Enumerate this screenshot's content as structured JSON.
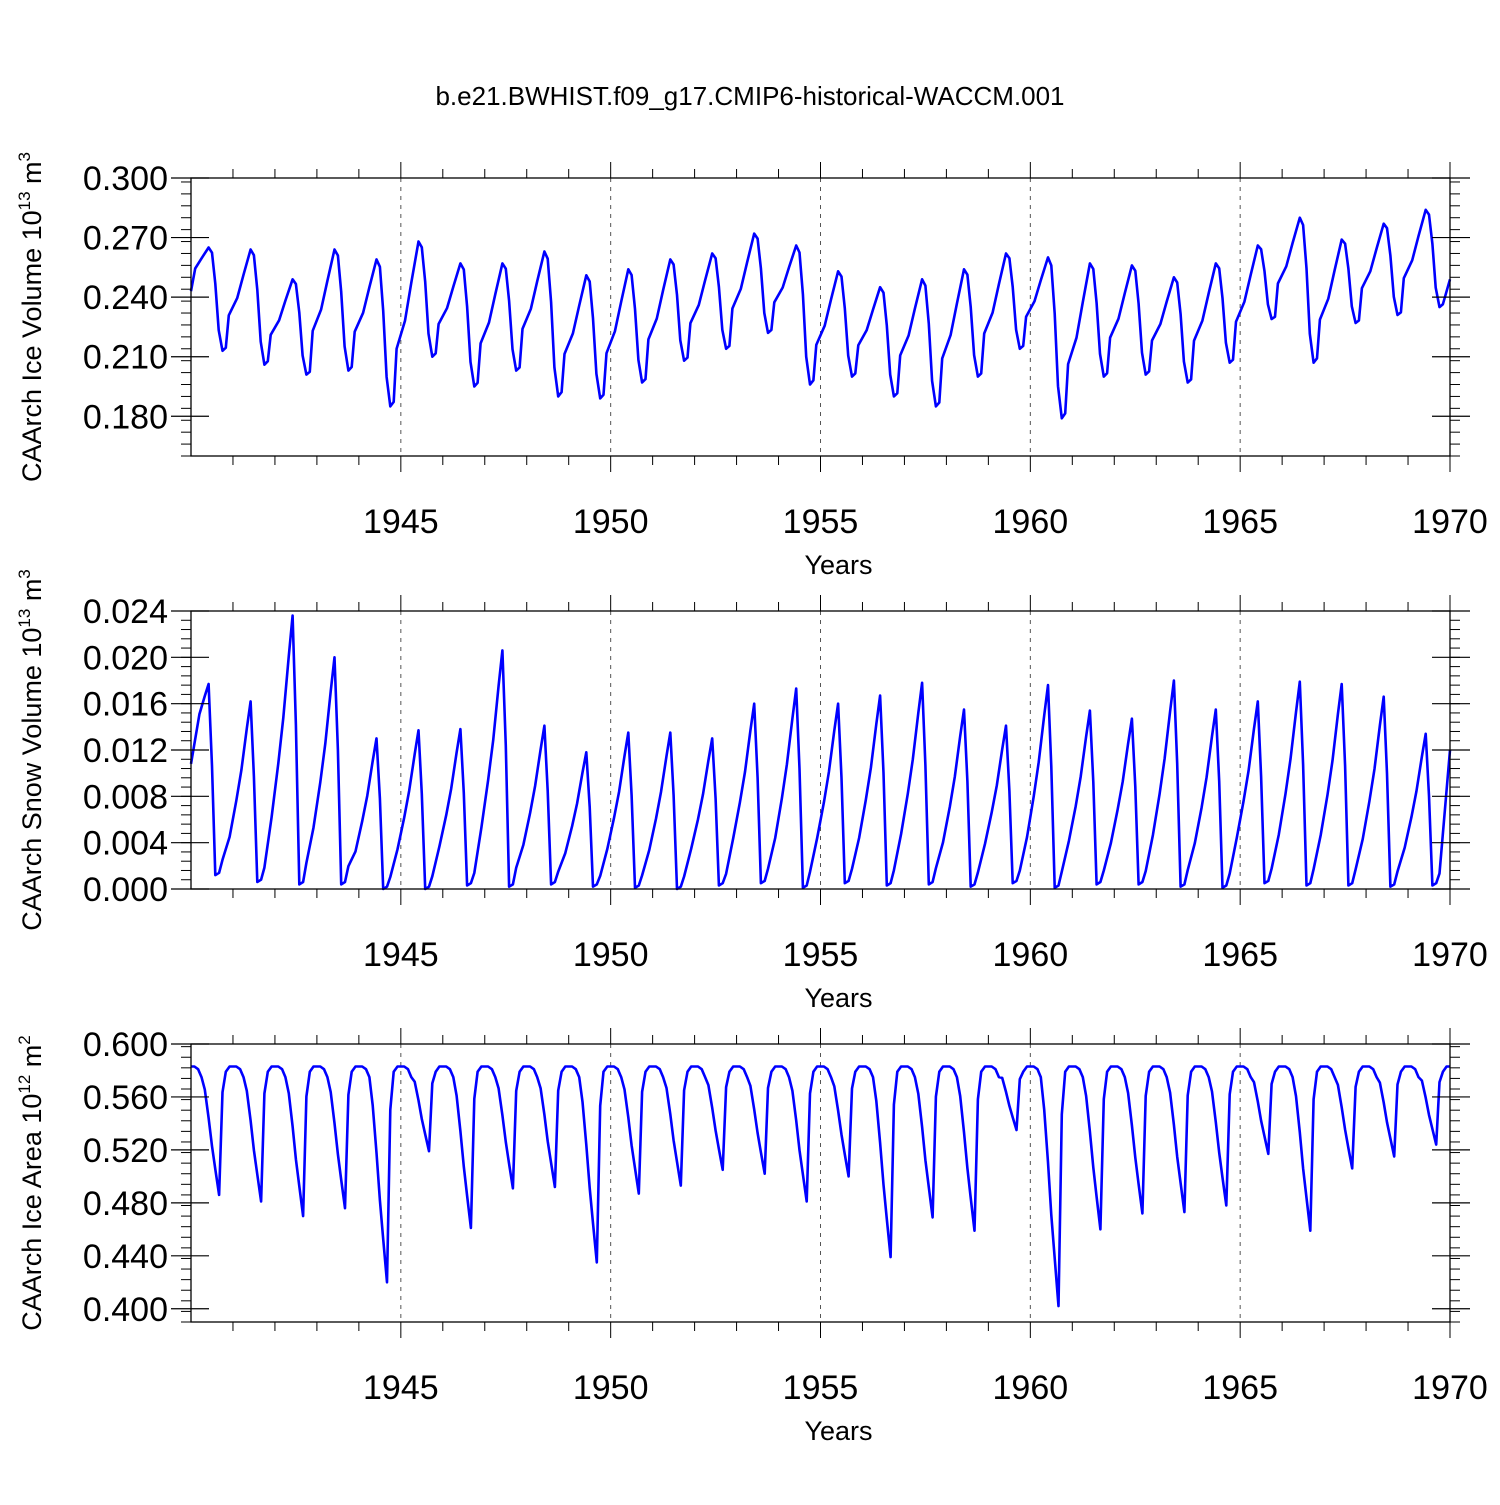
{
  "figure": {
    "title": "b.e21.BWHIST.f09_g17.CMIP6-historical-WACCM.001",
    "line_color": "#0000ff",
    "frame_color": "#000000",
    "grid_color": "#555555"
  },
  "chart_data": [
    {
      "type": "line",
      "id": "ice-volume",
      "ylabel_main": "CAArch Ice Volume 10",
      "ylabel_exp": "13",
      "ylabel_unit": " m",
      "ylabel_unit_exp": "3",
      "xlabel": "Years",
      "xlim": [
        1940.0,
        1970.0
      ],
      "ylim": [
        0.16,
        0.3
      ],
      "xticks": [
        1945,
        1950,
        1955,
        1960,
        1965,
        1970
      ],
      "xtick_labels": [
        "1945",
        "1950",
        "1955",
        "1960",
        "1965",
        "1970"
      ],
      "yticks": [
        0.18,
        0.21,
        0.24,
        0.27,
        0.3
      ],
      "ytick_labels": [
        "0.180",
        "0.210",
        "0.240",
        "0.270",
        "0.300"
      ],
      "yminor_step": 0.006,
      "grid_years": [
        1945,
        1950,
        1955,
        1960,
        1965
      ],
      "cycles": [
        {
          "max": 0.265,
          "min": 0.213
        },
        {
          "max": 0.264,
          "min": 0.206
        },
        {
          "max": 0.249,
          "min": 0.201
        },
        {
          "max": 0.264,
          "min": 0.203
        },
        {
          "max": 0.259,
          "min": 0.185
        },
        {
          "max": 0.268,
          "min": 0.21
        },
        {
          "max": 0.257,
          "min": 0.195
        },
        {
          "max": 0.257,
          "min": 0.203
        },
        {
          "max": 0.263,
          "min": 0.19
        },
        {
          "max": 0.251,
          "min": 0.189
        },
        {
          "max": 0.254,
          "min": 0.197
        },
        {
          "max": 0.259,
          "min": 0.208
        },
        {
          "max": 0.262,
          "min": 0.214
        },
        {
          "max": 0.272,
          "min": 0.222
        },
        {
          "max": 0.266,
          "min": 0.196
        },
        {
          "max": 0.253,
          "min": 0.2
        },
        {
          "max": 0.245,
          "min": 0.19
        },
        {
          "max": 0.249,
          "min": 0.185
        },
        {
          "max": 0.254,
          "min": 0.2
        },
        {
          "max": 0.262,
          "min": 0.214
        },
        {
          "max": 0.26,
          "min": 0.179
        },
        {
          "max": 0.257,
          "min": 0.2
        },
        {
          "max": 0.256,
          "min": 0.201
        },
        {
          "max": 0.25,
          "min": 0.197
        },
        {
          "max": 0.257,
          "min": 0.207
        },
        {
          "max": 0.266,
          "min": 0.229
        },
        {
          "max": 0.28,
          "min": 0.207
        },
        {
          "max": 0.269,
          "min": 0.227
        },
        {
          "max": 0.277,
          "min": 0.231
        },
        {
          "max": 0.284,
          "min": 0.235
        }
      ],
      "start_value": 0.243,
      "end_value": 0.249,
      "shape": "sawtooth"
    },
    {
      "type": "line",
      "id": "snow-volume",
      "ylabel_main": "CAArch Snow Volume 10",
      "ylabel_exp": "13",
      "ylabel_unit": " m",
      "ylabel_unit_exp": "3",
      "xlabel": "Years",
      "xlim": [
        1940.0,
        1970.0
      ],
      "ylim": [
        0.0,
        0.024
      ],
      "xticks": [
        1945,
        1950,
        1955,
        1960,
        1965,
        1970
      ],
      "xtick_labels": [
        "1945",
        "1950",
        "1955",
        "1960",
        "1965",
        "1970"
      ],
      "yticks": [
        0.0,
        0.004,
        0.008,
        0.012,
        0.016,
        0.02,
        0.024
      ],
      "ytick_labels": [
        "0.000",
        "0.004",
        "0.008",
        "0.012",
        "0.016",
        "0.020",
        "0.024"
      ],
      "yminor_step": 0.0008,
      "grid_years": [
        1945,
        1950,
        1955,
        1960,
        1965
      ],
      "cycles": [
        {
          "max": 0.0177,
          "min": 0.0012
        },
        {
          "max": 0.0162,
          "min": 0.0006
        },
        {
          "max": 0.0236,
          "min": 0.0004
        },
        {
          "max": 0.02,
          "min": 0.0004
        },
        {
          "max": 0.013,
          "min": 0.0
        },
        {
          "max": 0.0137,
          "min": 0.0
        },
        {
          "max": 0.0138,
          "min": 0.0003
        },
        {
          "max": 0.0206,
          "min": 0.0002
        },
        {
          "max": 0.0141,
          "min": 0.0004
        },
        {
          "max": 0.0118,
          "min": 0.0002
        },
        {
          "max": 0.0135,
          "min": 0.0001
        },
        {
          "max": 0.0135,
          "min": 0.0
        },
        {
          "max": 0.013,
          "min": 0.0003
        },
        {
          "max": 0.016,
          "min": 0.0005
        },
        {
          "max": 0.0173,
          "min": 0.0001
        },
        {
          "max": 0.016,
          "min": 0.0005
        },
        {
          "max": 0.0167,
          "min": 0.0003
        },
        {
          "max": 0.0178,
          "min": 0.0004
        },
        {
          "max": 0.0155,
          "min": 0.0002
        },
        {
          "max": 0.0141,
          "min": 0.0005
        },
        {
          "max": 0.0176,
          "min": 0.0001
        },
        {
          "max": 0.0154,
          "min": 0.0004
        },
        {
          "max": 0.0147,
          "min": 0.0004
        },
        {
          "max": 0.018,
          "min": 0.0002
        },
        {
          "max": 0.0155,
          "min": 0.0001
        },
        {
          "max": 0.0162,
          "min": 0.0005
        },
        {
          "max": 0.0179,
          "min": 0.0003
        },
        {
          "max": 0.0177,
          "min": 0.0003
        },
        {
          "max": 0.0166,
          "min": 0.0002
        },
        {
          "max": 0.0134,
          "min": 0.0003
        }
      ],
      "start_value": 0.0108,
      "end_value": 0.012,
      "shape": "snow"
    },
    {
      "type": "line",
      "id": "ice-area",
      "ylabel_main": "CAArch Ice Area 10",
      "ylabel_exp": "12",
      "ylabel_unit": " m",
      "ylabel_unit_exp": "2",
      "xlabel": "Years",
      "xlim": [
        1940.0,
        1970.0
      ],
      "ylim": [
        0.39,
        0.6
      ],
      "xticks": [
        1945,
        1950,
        1955,
        1960,
        1965,
        1970
      ],
      "xtick_labels": [
        "1945",
        "1950",
        "1955",
        "1960",
        "1965",
        "1970"
      ],
      "yticks": [
        0.4,
        0.44,
        0.48,
        0.52,
        0.56,
        0.6
      ],
      "ytick_labels": [
        "0.400",
        "0.440",
        "0.480",
        "0.520",
        "0.560",
        "0.600"
      ],
      "yminor_step": 0.008,
      "grid_years": [
        1945,
        1950,
        1955,
        1960,
        1965
      ],
      "cycles": [
        {
          "max": 0.583,
          "min": 0.486
        },
        {
          "max": 0.583,
          "min": 0.481
        },
        {
          "max": 0.583,
          "min": 0.47
        },
        {
          "max": 0.583,
          "min": 0.476
        },
        {
          "max": 0.583,
          "min": 0.42
        },
        {
          "max": 0.583,
          "min": 0.519
        },
        {
          "max": 0.583,
          "min": 0.461
        },
        {
          "max": 0.583,
          "min": 0.491
        },
        {
          "max": 0.583,
          "min": 0.492
        },
        {
          "max": 0.583,
          "min": 0.435
        },
        {
          "max": 0.583,
          "min": 0.487
        },
        {
          "max": 0.583,
          "min": 0.493
        },
        {
          "max": 0.583,
          "min": 0.505
        },
        {
          "max": 0.583,
          "min": 0.502
        },
        {
          "max": 0.583,
          "min": 0.481
        },
        {
          "max": 0.583,
          "min": 0.5
        },
        {
          "max": 0.583,
          "min": 0.439
        },
        {
          "max": 0.583,
          "min": 0.469
        },
        {
          "max": 0.583,
          "min": 0.459
        },
        {
          "max": 0.583,
          "min": 0.535
        },
        {
          "max": 0.583,
          "min": 0.402
        },
        {
          "max": 0.583,
          "min": 0.46
        },
        {
          "max": 0.583,
          "min": 0.472
        },
        {
          "max": 0.583,
          "min": 0.473
        },
        {
          "max": 0.583,
          "min": 0.478
        },
        {
          "max": 0.583,
          "min": 0.517
        },
        {
          "max": 0.583,
          "min": 0.459
        },
        {
          "max": 0.583,
          "min": 0.506
        },
        {
          "max": 0.583,
          "min": 0.515
        },
        {
          "max": 0.583,
          "min": 0.524
        }
      ],
      "start_value": 0.583,
      "end_value": 0.583,
      "shape": "area"
    }
  ]
}
